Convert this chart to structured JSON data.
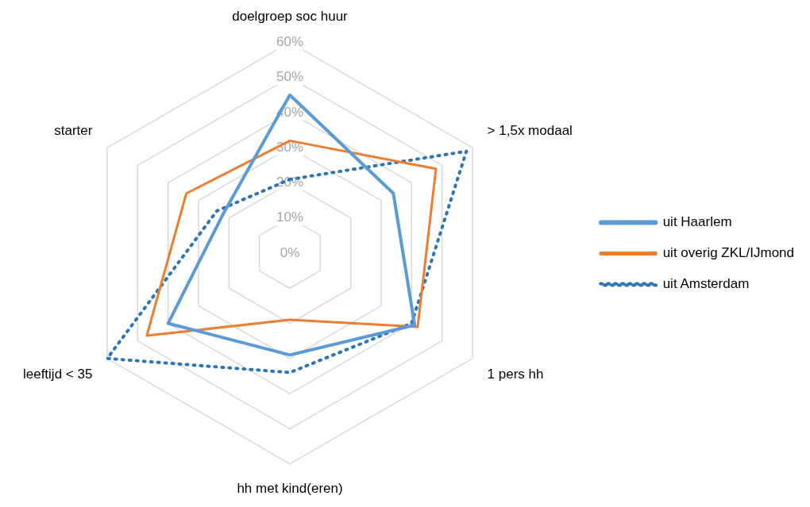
{
  "chart_data": {
    "type": "radar",
    "categories": [
      "doelgroep soc huur",
      "> 1,5x modaal",
      "1 pers hh",
      "hh met kind(eren)",
      "leeftijd < 35",
      "starter"
    ],
    "ylim": [
      0,
      60
    ],
    "yticks": [
      {
        "value": 0,
        "label": "0%"
      },
      {
        "value": 10,
        "label": "10%"
      },
      {
        "value": 20,
        "label": "20%"
      },
      {
        "value": 30,
        "label": "30%"
      },
      {
        "value": 40,
        "label": "40%"
      },
      {
        "value": 50,
        "label": "50%"
      },
      {
        "value": 60,
        "label": "60%"
      }
    ],
    "grid": true,
    "legend": "right",
    "marker": "none",
    "series": [
      {
        "name": "uit Haarlem",
        "color": "#5b9bd5",
        "line_style": "solid",
        "values": [
          45,
          34,
          41,
          29,
          40,
          22
        ]
      },
      {
        "name": "uit overig ZKL/IJmond",
        "color": "#ed7d31",
        "line_style": "solid",
        "values": [
          32,
          48,
          42,
          19,
          47,
          34
        ]
      },
      {
        "name": "uit Amsterdam",
        "color": "#2e75b6",
        "line_style": "dotted",
        "values": [
          21,
          58,
          40,
          34,
          60,
          24
        ]
      }
    ]
  }
}
